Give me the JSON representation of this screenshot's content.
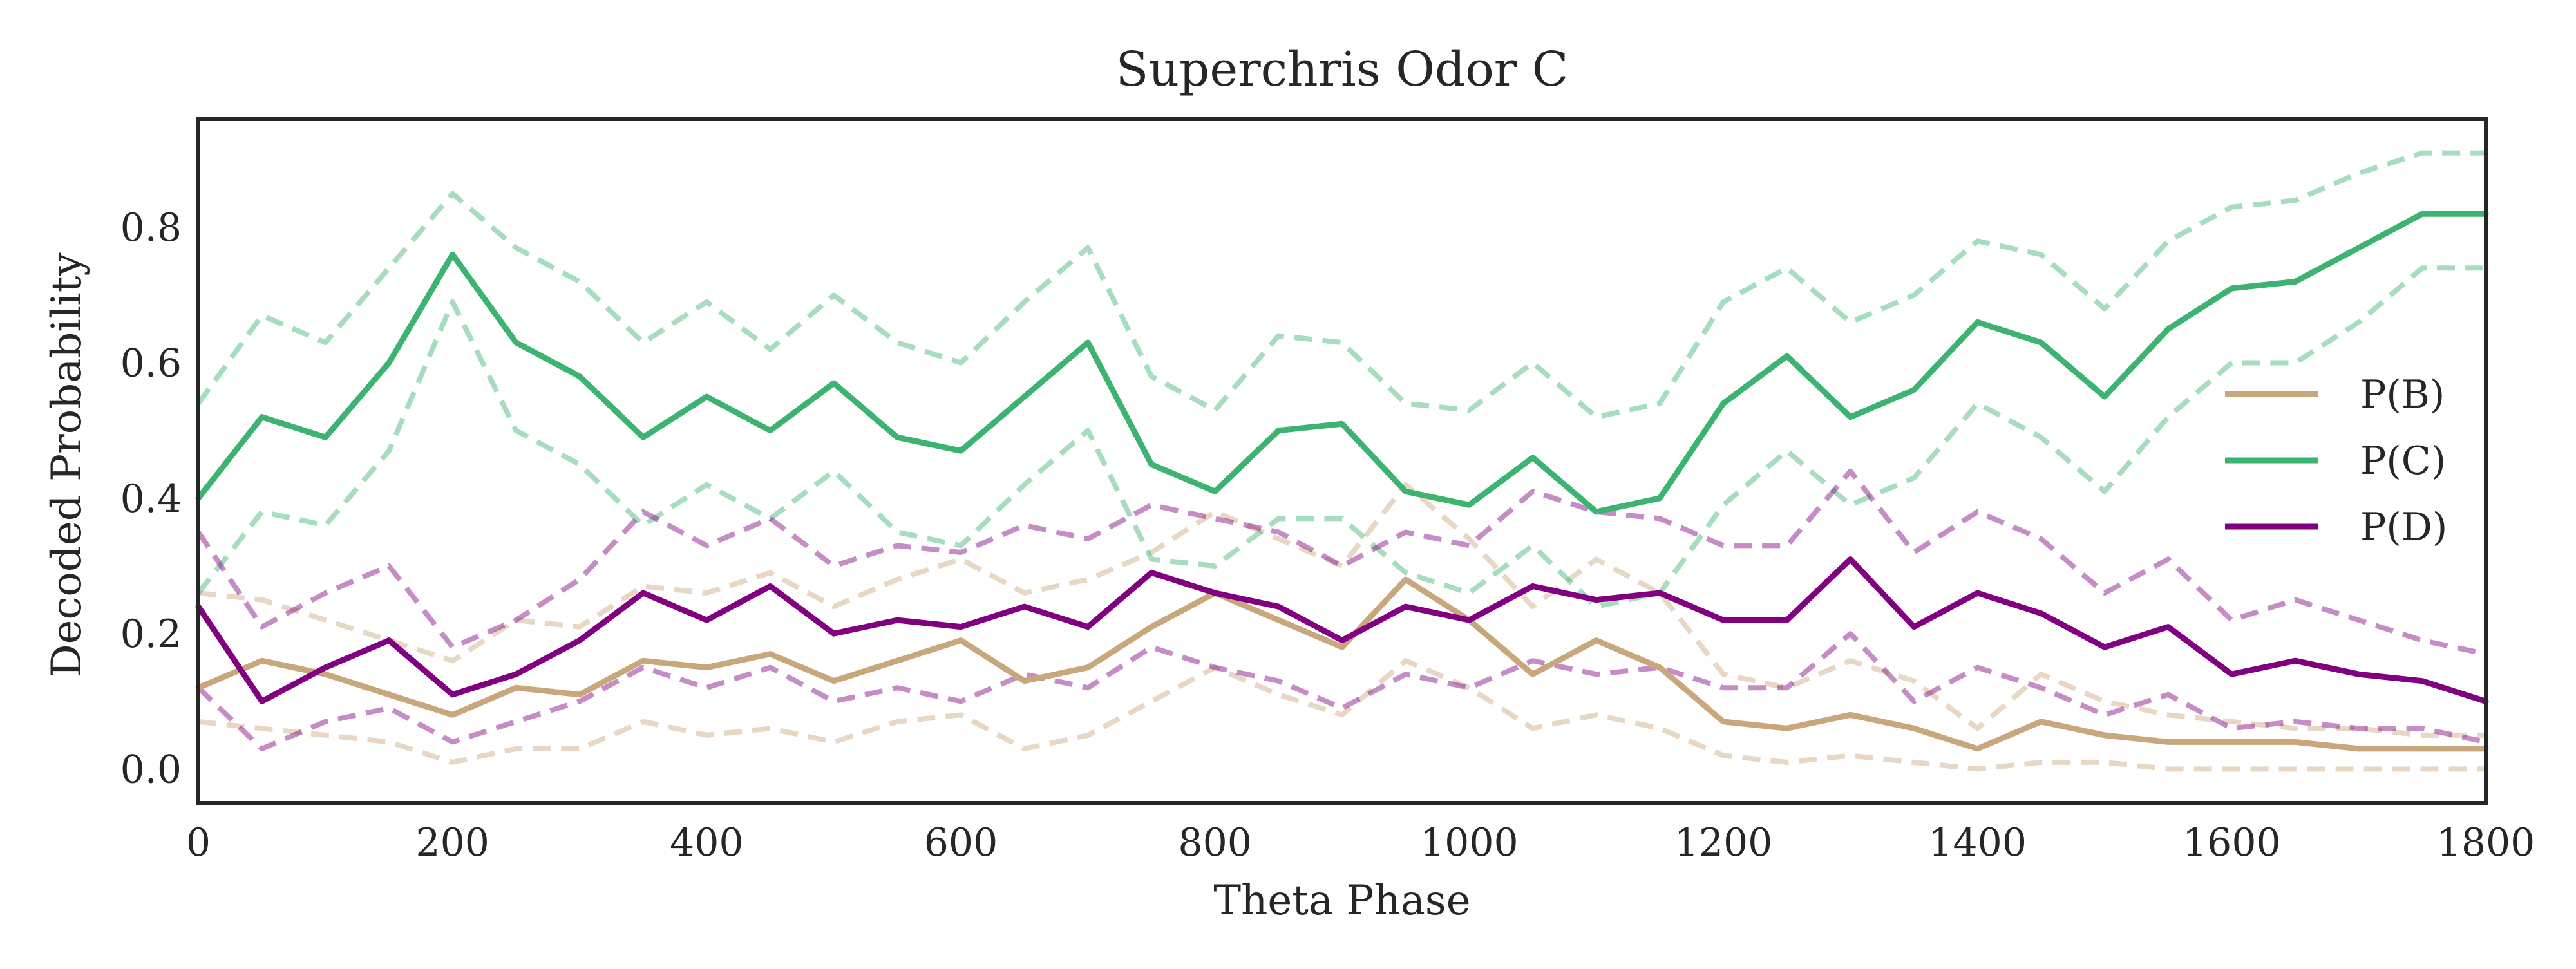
{
  "chart_data": {
    "type": "line",
    "title": "Superchris Odor C",
    "xlabel": "Theta Phase",
    "ylabel": "Decoded Probability",
    "xlim": [
      0,
      1800
    ],
    "ylim": [
      -0.05,
      0.96
    ],
    "xticks": [
      0,
      200,
      400,
      600,
      800,
      1000,
      1200,
      1400,
      1600,
      1800
    ],
    "xtick_labels": [
      "0",
      "200",
      "400",
      "600",
      "800",
      "1000",
      "1200",
      "1400",
      "1600",
      "1800"
    ],
    "yticks": [
      0.0,
      0.2,
      0.4,
      0.6,
      0.8
    ],
    "ytick_labels": [
      "0.0",
      "0.2",
      "0.4",
      "0.6",
      "0.8"
    ],
    "grid": false,
    "legend_position": "center-right",
    "x": [
      0,
      50,
      100,
      150,
      200,
      250,
      300,
      350,
      400,
      450,
      500,
      550,
      600,
      650,
      700,
      750,
      800,
      850,
      900,
      950,
      1000,
      1050,
      1100,
      1150,
      1200,
      1250,
      1300,
      1350,
      1400,
      1450,
      1500,
      1550,
      1600,
      1650,
      1700,
      1750,
      1800
    ],
    "series": [
      {
        "name": "P(B)",
        "color": "#c9a77d",
        "values": [
          0.12,
          0.16,
          0.14,
          0.11,
          0.08,
          0.12,
          0.11,
          0.16,
          0.15,
          0.17,
          0.13,
          0.16,
          0.19,
          0.13,
          0.15,
          0.21,
          0.26,
          0.22,
          0.18,
          0.28,
          0.22,
          0.14,
          0.19,
          0.15,
          0.07,
          0.06,
          0.08,
          0.06,
          0.03,
          0.07,
          0.05,
          0.04,
          0.04,
          0.04,
          0.03,
          0.03,
          0.03
        ],
        "upper": [
          0.26,
          0.25,
          0.22,
          0.19,
          0.16,
          0.22,
          0.21,
          0.27,
          0.26,
          0.29,
          0.24,
          0.28,
          0.31,
          0.26,
          0.28,
          0.32,
          0.38,
          0.34,
          0.3,
          0.42,
          0.34,
          0.24,
          0.31,
          0.26,
          0.14,
          0.12,
          0.16,
          0.13,
          0.06,
          0.14,
          0.1,
          0.08,
          0.07,
          0.06,
          0.06,
          0.05,
          0.05
        ],
        "lower": [
          0.07,
          0.06,
          0.05,
          0.04,
          0.01,
          0.03,
          0.03,
          0.07,
          0.05,
          0.06,
          0.04,
          0.07,
          0.08,
          0.03,
          0.05,
          0.1,
          0.15,
          0.11,
          0.08,
          0.16,
          0.12,
          0.06,
          0.08,
          0.06,
          0.02,
          0.01,
          0.02,
          0.01,
          0.0,
          0.01,
          0.01,
          0.0,
          0.0,
          0.0,
          0.0,
          0.0,
          0.0
        ]
      },
      {
        "name": "P(C)",
        "color": "#3cb371",
        "values": [
          0.4,
          0.52,
          0.49,
          0.6,
          0.76,
          0.63,
          0.58,
          0.49,
          0.55,
          0.5,
          0.57,
          0.49,
          0.47,
          0.55,
          0.63,
          0.45,
          0.41,
          0.5,
          0.51,
          0.41,
          0.39,
          0.46,
          0.38,
          0.4,
          0.54,
          0.61,
          0.52,
          0.56,
          0.66,
          0.63,
          0.55,
          0.65,
          0.71,
          0.72,
          0.77,
          0.82,
          0.82
        ],
        "upper": [
          0.54,
          0.67,
          0.63,
          0.74,
          0.85,
          0.77,
          0.72,
          0.63,
          0.69,
          0.62,
          0.7,
          0.63,
          0.6,
          0.69,
          0.77,
          0.58,
          0.53,
          0.64,
          0.63,
          0.54,
          0.53,
          0.6,
          0.52,
          0.54,
          0.69,
          0.74,
          0.66,
          0.7,
          0.78,
          0.76,
          0.68,
          0.78,
          0.83,
          0.84,
          0.88,
          0.91,
          0.91
        ],
        "lower": [
          0.26,
          0.38,
          0.36,
          0.47,
          0.69,
          0.5,
          0.45,
          0.36,
          0.42,
          0.37,
          0.44,
          0.35,
          0.33,
          0.42,
          0.5,
          0.31,
          0.3,
          0.37,
          0.37,
          0.29,
          0.26,
          0.33,
          0.24,
          0.26,
          0.39,
          0.47,
          0.39,
          0.43,
          0.54,
          0.49,
          0.41,
          0.52,
          0.6,
          0.6,
          0.66,
          0.74,
          0.74
        ]
      },
      {
        "name": "P(D)",
        "color": "#800080",
        "values": [
          0.24,
          0.1,
          0.15,
          0.19,
          0.11,
          0.14,
          0.19,
          0.26,
          0.22,
          0.27,
          0.2,
          0.22,
          0.21,
          0.24,
          0.21,
          0.29,
          0.26,
          0.24,
          0.19,
          0.24,
          0.22,
          0.27,
          0.25,
          0.26,
          0.22,
          0.22,
          0.31,
          0.21,
          0.26,
          0.23,
          0.18,
          0.21,
          0.14,
          0.16,
          0.14,
          0.13,
          0.1
        ],
        "upper": [
          0.35,
          0.21,
          0.26,
          0.3,
          0.18,
          0.22,
          0.28,
          0.38,
          0.33,
          0.37,
          0.3,
          0.33,
          0.32,
          0.36,
          0.34,
          0.39,
          0.37,
          0.35,
          0.3,
          0.35,
          0.33,
          0.41,
          0.38,
          0.37,
          0.33,
          0.33,
          0.44,
          0.32,
          0.38,
          0.34,
          0.26,
          0.31,
          0.22,
          0.25,
          0.22,
          0.19,
          0.17
        ],
        "lower": [
          0.12,
          0.03,
          0.07,
          0.09,
          0.04,
          0.07,
          0.1,
          0.15,
          0.12,
          0.15,
          0.1,
          0.12,
          0.1,
          0.14,
          0.12,
          0.18,
          0.15,
          0.13,
          0.09,
          0.14,
          0.12,
          0.16,
          0.14,
          0.15,
          0.12,
          0.12,
          0.2,
          0.1,
          0.15,
          0.12,
          0.08,
          0.11,
          0.06,
          0.07,
          0.06,
          0.06,
          0.04
        ]
      }
    ]
  }
}
